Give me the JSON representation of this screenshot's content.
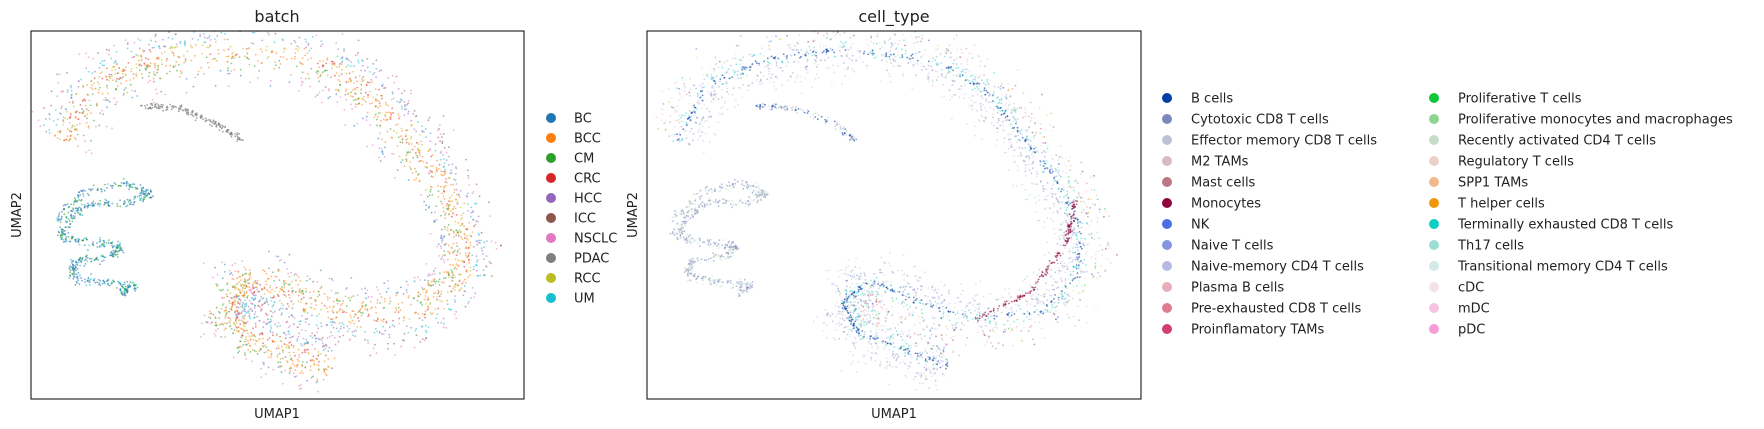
{
  "chart_data": [
    {
      "type": "scatter",
      "title": "batch",
      "xlabel": "UMAP1",
      "ylabel": "UMAP2",
      "ticks": "none",
      "legend_placement": "right",
      "legend_columns": 1,
      "series": [
        {
          "name": "BC",
          "color": "#1f77b4"
        },
        {
          "name": "BCC",
          "color": "#ff7f0e"
        },
        {
          "name": "CM",
          "color": "#2ca02c"
        },
        {
          "name": "CRC",
          "color": "#d62728"
        },
        {
          "name": "HCC",
          "color": "#9467bd"
        },
        {
          "name": "ICC",
          "color": "#8c564b"
        },
        {
          "name": "NSCLC",
          "color": "#e377c2"
        },
        {
          "name": "PDAC",
          "color": "#7f7f7f"
        },
        {
          "name": "RCC",
          "color": "#bcbd22"
        },
        {
          "name": "UM",
          "color": "#17becf"
        }
      ]
    },
    {
      "type": "scatter",
      "title": "cell_type",
      "xlabel": "UMAP1",
      "ylabel": "UMAP2",
      "ticks": "none",
      "legend_placement": "right",
      "legend_columns": 2,
      "series": [
        {
          "name": "B cells",
          "color": "#023fa5"
        },
        {
          "name": "Cytotoxic CD8 T cells",
          "color": "#7d87b9"
        },
        {
          "name": "Effector memory CD8 T cells",
          "color": "#bec1d4"
        },
        {
          "name": "M2 TAMs",
          "color": "#d6bcc0"
        },
        {
          "name": "Mast cells",
          "color": "#bb7784"
        },
        {
          "name": "Monocytes",
          "color": "#8e063b"
        },
        {
          "name": "NK",
          "color": "#4a6fe3"
        },
        {
          "name": "Naive T cells",
          "color": "#8595e1"
        },
        {
          "name": "Naive-memory CD4 T cells",
          "color": "#b5bbe3"
        },
        {
          "name": "Plasma B cells",
          "color": "#e6afb9"
        },
        {
          "name": "Pre-exhausted CD8 T cells",
          "color": "#e07b91"
        },
        {
          "name": "Proinflamatory TAMs",
          "color": "#d33f6a"
        },
        {
          "name": "Proliferative T cells",
          "color": "#11c638"
        },
        {
          "name": "Proliferative monocytes and macrophages",
          "color": "#8dd593"
        },
        {
          "name": "Recently activated CD4 T cells",
          "color": "#c6dec7"
        },
        {
          "name": "Regulatory T cells",
          "color": "#ead3c6"
        },
        {
          "name": "SPP1 TAMs",
          "color": "#f0b98d"
        },
        {
          "name": "T helper cells",
          "color": "#ef9708"
        },
        {
          "name": "Terminally exhausted CD8 T cells",
          "color": "#0fcfc0"
        },
        {
          "name": "Th17 cells",
          "color": "#9cded6"
        },
        {
          "name": "Transitional memory CD4 T cells",
          "color": "#d5eae7"
        },
        {
          "name": "cDC",
          "color": "#f3e1eb"
        },
        {
          "name": "mDC",
          "color": "#f6c4e1"
        },
        {
          "name": "pDC",
          "color": "#f79cd4"
        }
      ]
    }
  ]
}
